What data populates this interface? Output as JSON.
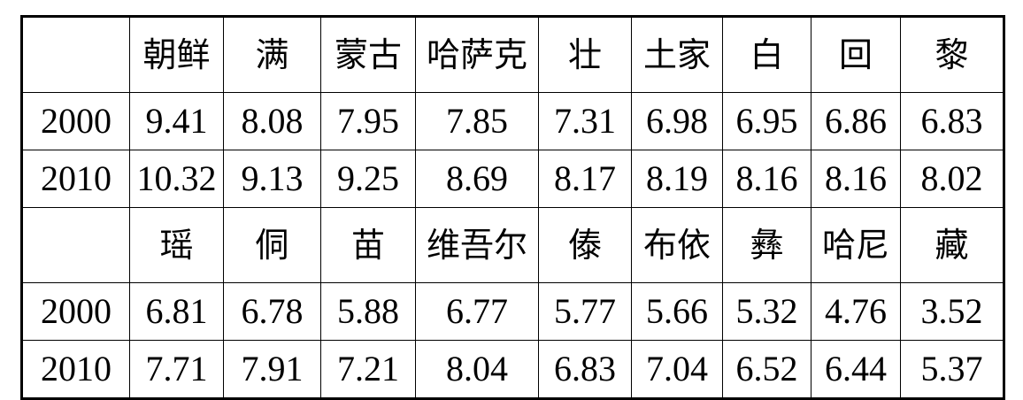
{
  "blocks": [
    {
      "groups": [
        "朝鲜",
        "满",
        "蒙古",
        "哈萨克",
        "壮",
        "土家",
        "白",
        "回",
        "黎"
      ],
      "rows": [
        {
          "year": "2000",
          "values": [
            "9.41",
            "8.08",
            "7.95",
            "7.85",
            "7.31",
            "6.98",
            "6.95",
            "6.86",
            "6.83"
          ]
        },
        {
          "year": "2010",
          "values": [
            "10.32",
            "9.13",
            "9.25",
            "8.69",
            "8.17",
            "8.19",
            "8.16",
            "8.16",
            "8.02"
          ]
        }
      ]
    },
    {
      "groups": [
        "瑶",
        "侗",
        "苗",
        "维吾尔",
        "傣",
        "布依",
        "彝",
        "哈尼",
        "藏"
      ],
      "rows": [
        {
          "year": "2000",
          "values": [
            "6.81",
            "6.78",
            "5.88",
            "6.77",
            "5.77",
            "5.66",
            "5.32",
            "4.76",
            "3.52"
          ]
        },
        {
          "year": "2010",
          "values": [
            "7.71",
            "7.91",
            "7.21",
            "8.04",
            "6.83",
            "7.04",
            "6.52",
            "6.44",
            "5.37"
          ]
        }
      ]
    }
  ]
}
